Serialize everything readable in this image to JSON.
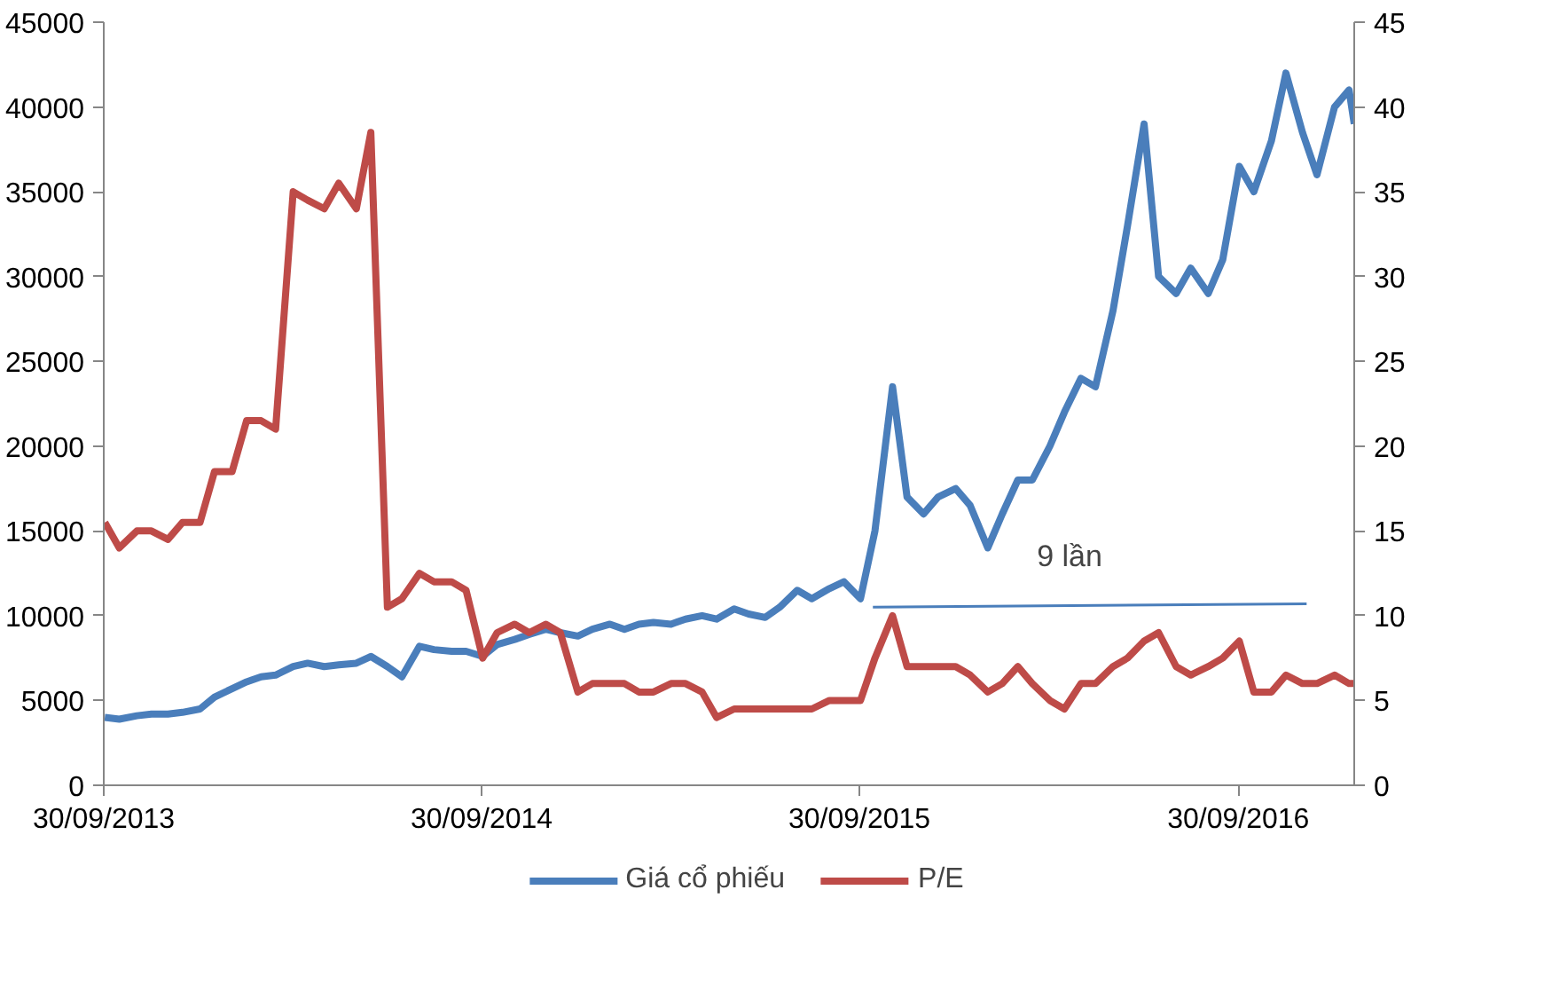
{
  "chart_data": {
    "type": "line",
    "x": [
      "2013-10-01",
      "2013-10-15",
      "2013-11-01",
      "2013-11-15",
      "2013-12-01",
      "2013-12-15",
      "2014-01-01",
      "2014-01-15",
      "2014-02-01",
      "2014-02-15",
      "2014-03-01",
      "2014-03-15",
      "2014-04-01",
      "2014-04-15",
      "2014-05-01",
      "2014-05-15",
      "2014-06-01",
      "2014-06-15",
      "2014-07-01",
      "2014-07-15",
      "2014-08-01",
      "2014-08-15",
      "2014-09-01",
      "2014-09-15",
      "2014-10-01",
      "2014-10-15",
      "2014-11-01",
      "2014-11-15",
      "2014-12-01",
      "2014-12-15",
      "2015-01-01",
      "2015-01-15",
      "2015-02-01",
      "2015-02-15",
      "2015-03-01",
      "2015-03-15",
      "2015-04-01",
      "2015-04-15",
      "2015-05-01",
      "2015-05-15",
      "2015-06-01",
      "2015-06-15",
      "2015-07-01",
      "2015-07-15",
      "2015-08-01",
      "2015-08-15",
      "2015-09-01",
      "2015-09-15",
      "2015-10-01",
      "2015-10-15",
      "2015-11-01",
      "2015-11-15",
      "2015-12-01",
      "2015-12-15",
      "2016-01-01",
      "2016-01-15",
      "2016-02-01",
      "2016-02-15",
      "2016-03-01",
      "2016-03-15",
      "2016-04-01",
      "2016-04-15",
      "2016-05-01",
      "2016-05-15",
      "2016-06-01",
      "2016-06-15",
      "2016-07-01",
      "2016-07-15",
      "2016-08-01",
      "2016-08-15",
      "2016-09-01",
      "2016-09-15",
      "2016-10-01",
      "2016-10-15",
      "2016-11-01",
      "2016-11-15",
      "2016-12-01",
      "2016-12-15",
      "2017-01-01",
      "2017-01-15",
      "2017-01-20"
    ],
    "series": [
      {
        "name": "Giá cổ phiếu",
        "color": "#4a7ebb",
        "values": [
          4000,
          3900,
          4100,
          4200,
          4200,
          4300,
          4500,
          5200,
          5700,
          6100,
          6400,
          6500,
          7000,
          7200,
          7000,
          7100,
          7200,
          7600,
          7000,
          6400,
          8200,
          8000,
          7900,
          7900,
          7600,
          8300,
          8600,
          8900,
          9200,
          9000,
          8800,
          9200,
          9500,
          9200,
          9500,
          9600,
          9500,
          9800,
          10000,
          9800,
          10400,
          10100,
          9900,
          10500,
          11500,
          11000,
          11600,
          12000,
          11000,
          15000,
          23500,
          17000,
          16000,
          17000,
          17500,
          16500,
          14000,
          16000,
          18000,
          18000,
          20000,
          22000,
          24000,
          23500,
          28000,
          33000,
          39000,
          30000,
          29000,
          30500,
          29000,
          31000,
          36500,
          35000,
          38000,
          42000,
          38500,
          36000,
          40000,
          41000,
          39000
        ]
      },
      {
        "name": "P/E",
        "color": "#be4b48",
        "axis": "y2",
        "values": [
          15.5,
          14,
          15,
          15,
          14.5,
          15.5,
          15.5,
          18.5,
          18.5,
          21.5,
          21.5,
          21,
          35,
          34.5,
          34,
          35.5,
          34,
          38.5,
          10.5,
          11,
          12.5,
          12,
          12,
          11.5,
          7.5,
          9,
          9.5,
          9,
          9.5,
          9,
          5.5,
          6,
          6,
          6,
          5.5,
          5.5,
          6,
          6,
          5.5,
          4,
          4.5,
          4.5,
          4.5,
          4.5,
          4.5,
          4.5,
          5,
          5,
          5,
          7.5,
          10,
          7,
          7,
          7,
          7,
          6.5,
          5.5,
          6,
          7,
          6,
          5,
          4.5,
          6,
          6,
          7,
          7.5,
          8.5,
          9,
          7,
          6.5,
          7,
          7.5,
          8.5,
          5.5,
          5.5,
          6.5,
          6,
          6,
          6.5,
          6,
          6
        ]
      },
      {
        "color": "#4a7ebb",
        "x": [
          "2015-10-13",
          "2016-12-05"
        ],
        "values": [
          10500,
          10700
        ]
      }
    ],
    "annotations": [
      {
        "text": "9 lần",
        "x": "2016-04-20",
        "y": 10600
      }
    ],
    "xlim": [
      "2013-09-30",
      "2017-01-20"
    ],
    "xticks": [
      {
        "value": "2013-09-30",
        "label": "30/09/2013"
      },
      {
        "value": "2014-09-30",
        "label": "30/09/2014"
      },
      {
        "value": "2015-09-30",
        "label": "30/09/2015"
      },
      {
        "value": "2016-09-30",
        "label": "30/09/2016"
      }
    ],
    "ylim": [
      0,
      45000
    ],
    "yticks": [
      0,
      5000,
      10000,
      15000,
      20000,
      25000,
      30000,
      35000,
      40000,
      45000
    ],
    "y2lim": [
      0,
      45
    ],
    "y2ticks": [
      0,
      5,
      10,
      15,
      20,
      25,
      30,
      35,
      40,
      45
    ],
    "grid": false,
    "legend": "bottom"
  }
}
